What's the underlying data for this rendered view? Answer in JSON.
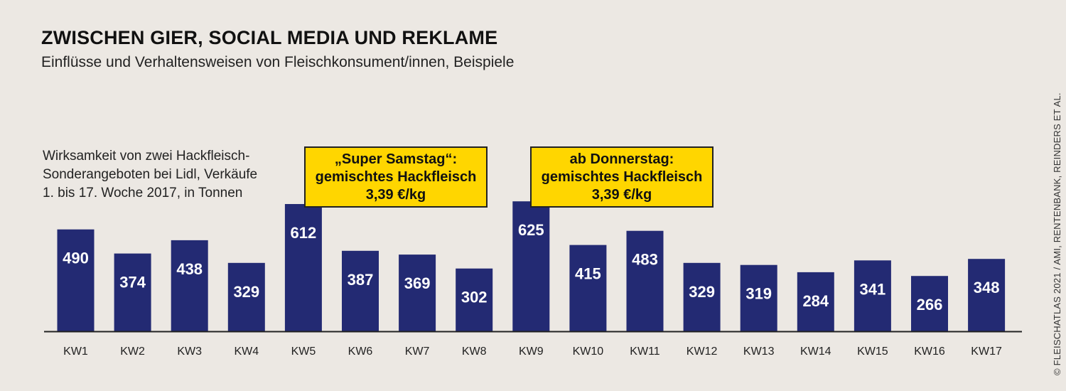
{
  "header": {
    "title": "ZWISCHEN GIER, SOCIAL MEDIA UND REKLAME",
    "subtitle": "Einflüsse und Verhaltensweisen von Fleischkonsument/innen, Beispiele"
  },
  "description": {
    "line1": "Wirksamkeit von zwei Hackfleisch-",
    "line2": "Sonderangeboten bei Lidl, Verkäufe",
    "line3": "1. bis 17. Woche 2017, in Tonnen"
  },
  "callouts": [
    {
      "line1": "„Super Samstag“:",
      "line2": "gemischtes Hackfleisch",
      "line3": "3,39 €/kg"
    },
    {
      "line1": "ab Donnerstag:",
      "line2": "gemischtes Hackfleisch",
      "line3": "3,39 €/kg"
    }
  ],
  "credit": "© FLEISCHATLAS 2021 / AMI, RENTENBANK, REINDERS ET AL.",
  "colors": {
    "bar": "#232a73",
    "callout": "#ffd600",
    "background": "#ece8e3"
  },
  "chart_data": {
    "type": "bar",
    "categories": [
      "KW1",
      "KW2",
      "KW3",
      "KW4",
      "KW5",
      "KW6",
      "KW7",
      "KW8",
      "KW9",
      "KW10",
      "KW11",
      "KW12",
      "KW13",
      "KW14",
      "KW15",
      "KW16",
      "KW17"
    ],
    "values": [
      490,
      374,
      438,
      329,
      612,
      387,
      369,
      302,
      625,
      415,
      483,
      329,
      319,
      284,
      341,
      266,
      348
    ],
    "unit": "Tonnen",
    "ylim": [
      0,
      640
    ],
    "grid": false,
    "legend": "none"
  }
}
